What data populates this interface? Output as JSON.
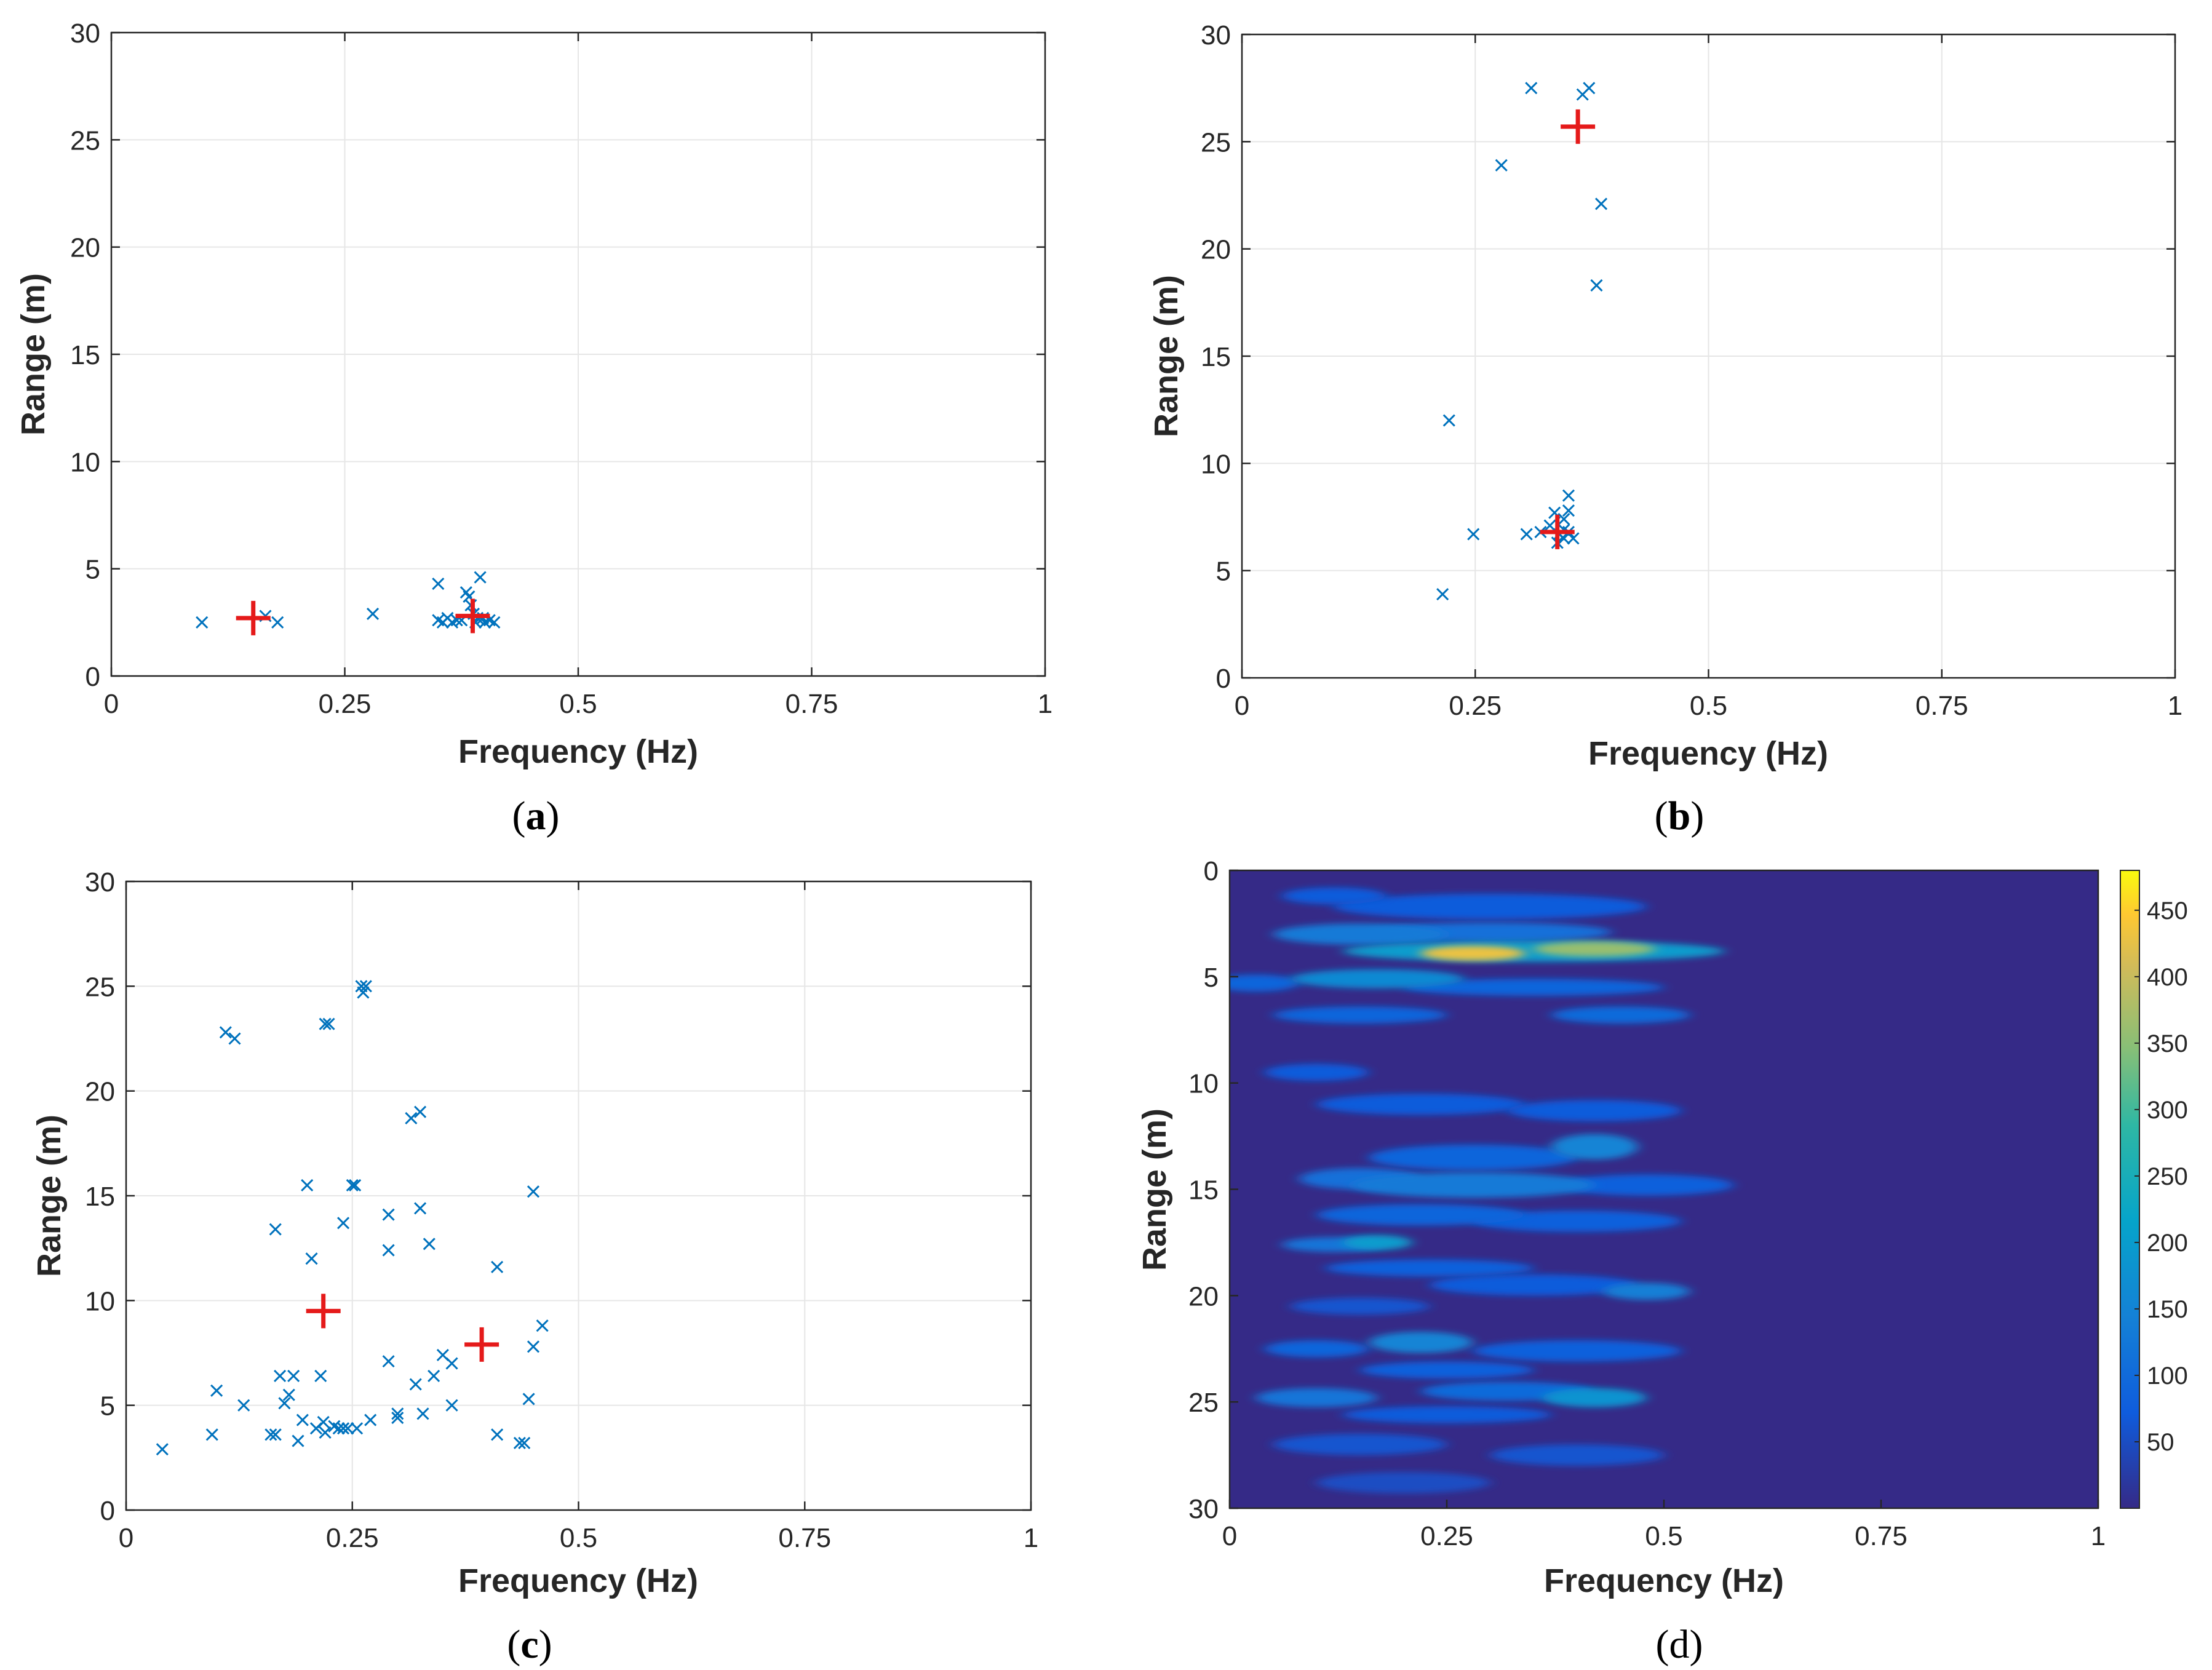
{
  "colors": {
    "marker_blue": "#0072BD",
    "peak_red": "#E51A1A",
    "heatmap_bg": "#352A87",
    "grid": "#E6E6E6",
    "axis": "#262626"
  },
  "chart_data": [
    {
      "panel": "a",
      "caption": "a",
      "type": "scatter",
      "xlabel": "Frequency (Hz)",
      "ylabel": "Range (m)",
      "xlim": [
        0,
        1
      ],
      "ylim": [
        0,
        30
      ],
      "xticks": [
        0,
        0.25,
        0.5,
        0.75,
        1
      ],
      "xtick_labels": [
        "0",
        "0.25",
        "0.5",
        "0.75",
        "1"
      ],
      "yticks": [
        0,
        5,
        10,
        15,
        20,
        25,
        30
      ],
      "ytick_labels": [
        "0",
        "5",
        "10",
        "15",
        "20",
        "25",
        "30"
      ],
      "grid": true,
      "series": [
        {
          "name": "detections",
          "marker": "x",
          "points": [
            [
              0.097,
              2.5
            ],
            [
              0.165,
              2.8
            ],
            [
              0.178,
              2.5
            ],
            [
              0.28,
              2.9
            ],
            [
              0.35,
              4.3
            ],
            [
              0.35,
              2.6
            ],
            [
              0.355,
              2.5
            ],
            [
              0.36,
              2.7
            ],
            [
              0.365,
              2.5
            ],
            [
              0.37,
              2.6
            ],
            [
              0.375,
              2.6
            ],
            [
              0.38,
              3.9
            ],
            [
              0.383,
              3.7
            ],
            [
              0.385,
              3.3
            ],
            [
              0.388,
              2.9
            ],
            [
              0.39,
              2.5
            ],
            [
              0.392,
              2.7
            ],
            [
              0.395,
              4.6
            ],
            [
              0.398,
              2.7
            ],
            [
              0.4,
              2.5
            ],
            [
              0.405,
              2.6
            ],
            [
              0.41,
              2.5
            ]
          ]
        },
        {
          "name": "peaks",
          "marker": "+",
          "points": [
            [
              0.152,
              2.7
            ],
            [
              0.387,
              2.8
            ]
          ]
        }
      ]
    },
    {
      "panel": "b",
      "caption": "b",
      "type": "scatter",
      "xlabel": "Frequency (Hz)",
      "ylabel": "Range (m)",
      "xlim": [
        0,
        1
      ],
      "ylim": [
        0,
        30
      ],
      "xticks": [
        0,
        0.25,
        0.5,
        0.75,
        1
      ],
      "xtick_labels": [
        "0",
        "0.25",
        "0.5",
        "0.75",
        "1"
      ],
      "yticks": [
        0,
        5,
        10,
        15,
        20,
        25,
        30
      ],
      "ytick_labels": [
        "0",
        "5",
        "10",
        "15",
        "20",
        "25",
        "30"
      ],
      "grid": true,
      "series": [
        {
          "name": "detections",
          "marker": "x",
          "points": [
            [
              0.31,
              27.5
            ],
            [
              0.365,
              27.2
            ],
            [
              0.372,
              27.5
            ],
            [
              0.278,
              23.9
            ],
            [
              0.385,
              22.1
            ],
            [
              0.38,
              18.3
            ],
            [
              0.222,
              12.0
            ],
            [
              0.215,
              3.9
            ],
            [
              0.248,
              6.7
            ],
            [
              0.305,
              6.7
            ],
            [
              0.32,
              6.8
            ],
            [
              0.33,
              7.1
            ],
            [
              0.335,
              7.7
            ],
            [
              0.34,
              6.7
            ],
            [
              0.345,
              6.5
            ],
            [
              0.345,
              7.4
            ],
            [
              0.35,
              8.5
            ],
            [
              0.35,
              6.8
            ],
            [
              0.355,
              6.5
            ],
            [
              0.35,
              7.8
            ],
            [
              0.338,
              6.3
            ],
            [
              0.345,
              6.9
            ]
          ]
        },
        {
          "name": "peaks",
          "marker": "+",
          "points": [
            [
              0.36,
              25.7
            ],
            [
              0.338,
              6.8
            ]
          ]
        }
      ]
    },
    {
      "panel": "c",
      "caption": "c",
      "type": "scatter",
      "xlabel": "Frequency (Hz)",
      "ylabel": "Range (m)",
      "xlim": [
        0,
        1
      ],
      "ylim": [
        0,
        30
      ],
      "xticks": [
        0,
        0.25,
        0.5,
        0.75,
        1
      ],
      "xtick_labels": [
        "0",
        "0.25",
        "0.5",
        "0.75",
        "1"
      ],
      "yticks": [
        0,
        5,
        10,
        15,
        20,
        25,
        30
      ],
      "ytick_labels": [
        "0",
        "5",
        "10",
        "15",
        "20",
        "25",
        "30"
      ],
      "grid": true,
      "series": [
        {
          "name": "detections",
          "marker": "x",
          "points": [
            [
              0.04,
              2.9
            ],
            [
              0.095,
              3.6
            ],
            [
              0.1,
              5.7
            ],
            [
              0.13,
              5.0
            ],
            [
              0.11,
              22.8
            ],
            [
              0.12,
              22.5
            ],
            [
              0.16,
              3.6
            ],
            [
              0.165,
              3.6
            ],
            [
              0.165,
              13.4
            ],
            [
              0.17,
              6.4
            ],
            [
              0.175,
              5.1
            ],
            [
              0.18,
              5.5
            ],
            [
              0.185,
              6.4
            ],
            [
              0.19,
              3.3
            ],
            [
              0.195,
              4.3
            ],
            [
              0.2,
              15.5
            ],
            [
              0.205,
              12.0
            ],
            [
              0.21,
              3.9
            ],
            [
              0.215,
              6.4
            ],
            [
              0.218,
              4.2
            ],
            [
              0.22,
              3.7
            ],
            [
              0.22,
              23.2
            ],
            [
              0.224,
              23.2
            ],
            [
              0.23,
              4.0
            ],
            [
              0.235,
              3.9
            ],
            [
              0.24,
              13.7
            ],
            [
              0.24,
              3.9
            ],
            [
              0.245,
              3.9
            ],
            [
              0.25,
              15.5
            ],
            [
              0.253,
              15.5
            ],
            [
              0.255,
              3.9
            ],
            [
              0.26,
              25.0
            ],
            [
              0.262,
              24.7
            ],
            [
              0.265,
              25.0
            ],
            [
              0.27,
              4.3
            ],
            [
              0.29,
              14.1
            ],
            [
              0.29,
              7.1
            ],
            [
              0.29,
              12.4
            ],
            [
              0.3,
              4.6
            ],
            [
              0.3,
              4.4
            ],
            [
              0.315,
              18.7
            ],
            [
              0.32,
              6.0
            ],
            [
              0.325,
              19.0
            ],
            [
              0.325,
              14.4
            ],
            [
              0.328,
              4.6
            ],
            [
              0.335,
              12.7
            ],
            [
              0.34,
              6.4
            ],
            [
              0.35,
              7.4
            ],
            [
              0.36,
              7.0
            ],
            [
              0.36,
              5.0
            ],
            [
              0.41,
              11.6
            ],
            [
              0.41,
              3.6
            ],
            [
              0.435,
              3.2
            ],
            [
              0.44,
              3.2
            ],
            [
              0.445,
              5.3
            ],
            [
              0.45,
              15.2
            ],
            [
              0.45,
              7.8
            ],
            [
              0.46,
              8.8
            ]
          ]
        },
        {
          "name": "peaks",
          "marker": "+",
          "points": [
            [
              0.218,
              9.5
            ],
            [
              0.393,
              7.9
            ]
          ]
        }
      ]
    },
    {
      "panel": "d",
      "caption": "d",
      "type": "heatmap",
      "xlabel": "Frequency (Hz)",
      "ylabel": "Range (m)",
      "xlim": [
        0,
        1
      ],
      "ylim": [
        0,
        30
      ],
      "y_reversed": true,
      "xticks": [
        0,
        0.25,
        0.5,
        0.75,
        1
      ],
      "xtick_labels": [
        "0",
        "0.25",
        "0.5",
        "0.75",
        "1"
      ],
      "yticks": [
        0,
        5,
        10,
        15,
        20,
        25,
        30
      ],
      "ytick_labels": [
        "0",
        "5",
        "10",
        "15",
        "20",
        "25",
        "30"
      ],
      "colorbar": {
        "min": 0,
        "max": 480,
        "ticks": [
          50,
          100,
          150,
          200,
          250,
          300,
          350,
          400,
          450
        ],
        "tick_labels": [
          "50",
          "100",
          "150",
          "200",
          "250",
          "300",
          "350",
          "400",
          "450"
        ],
        "colormap": "parula"
      },
      "blobs": [
        {
          "f": 0.28,
          "r": 3.9,
          "f_width": 0.06,
          "r_width": 0.35,
          "value": 430
        },
        {
          "f": 0.42,
          "r": 3.7,
          "f_width": 0.07,
          "r_width": 0.35,
          "value": 360
        },
        {
          "f": 0.35,
          "r": 3.8,
          "f_width": 0.22,
          "r_width": 0.5,
          "value": 200
        },
        {
          "f": 0.15,
          "r": 3.0,
          "f_width": 0.1,
          "r_width": 0.5,
          "value": 130
        },
        {
          "f": 0.3,
          "r": 2.9,
          "f_width": 0.14,
          "r_width": 0.45,
          "value": 110
        },
        {
          "f": 0.17,
          "r": 5.1,
          "f_width": 0.1,
          "r_width": 0.45,
          "value": 160
        },
        {
          "f": 0.35,
          "r": 5.5,
          "f_width": 0.15,
          "r_width": 0.4,
          "value": 90
        },
        {
          "f": 0.03,
          "r": 5.3,
          "f_width": 0.05,
          "r_width": 0.4,
          "value": 90
        },
        {
          "f": 0.15,
          "r": 6.8,
          "f_width": 0.1,
          "r_width": 0.4,
          "value": 90
        },
        {
          "f": 0.45,
          "r": 6.8,
          "f_width": 0.08,
          "r_width": 0.4,
          "value": 100
        },
        {
          "f": 0.3,
          "r": 1.7,
          "f_width": 0.18,
          "r_width": 0.6,
          "value": 70
        },
        {
          "f": 0.12,
          "r": 1.2,
          "f_width": 0.06,
          "r_width": 0.4,
          "value": 70
        },
        {
          "f": 0.1,
          "r": 9.5,
          "f_width": 0.06,
          "r_width": 0.4,
          "value": 70
        },
        {
          "f": 0.22,
          "r": 11.0,
          "f_width": 0.12,
          "r_width": 0.5,
          "value": 70
        },
        {
          "f": 0.42,
          "r": 11.3,
          "f_width": 0.1,
          "r_width": 0.5,
          "value": 70
        },
        {
          "f": 0.42,
          "r": 13.0,
          "f_width": 0.05,
          "r_width": 0.6,
          "value": 150
        },
        {
          "f": 0.28,
          "r": 13.5,
          "f_width": 0.12,
          "r_width": 0.6,
          "value": 90
        },
        {
          "f": 0.15,
          "r": 14.5,
          "f_width": 0.07,
          "r_width": 0.5,
          "value": 110
        },
        {
          "f": 0.28,
          "r": 14.8,
          "f_width": 0.14,
          "r_width": 0.6,
          "value": 130
        },
        {
          "f": 0.48,
          "r": 14.8,
          "f_width": 0.1,
          "r_width": 0.5,
          "value": 80
        },
        {
          "f": 0.22,
          "r": 16.2,
          "f_width": 0.12,
          "r_width": 0.5,
          "value": 90
        },
        {
          "f": 0.4,
          "r": 16.5,
          "f_width": 0.12,
          "r_width": 0.5,
          "value": 80
        },
        {
          "f": 0.17,
          "r": 17.5,
          "f_width": 0.04,
          "r_width": 0.35,
          "value": 200
        },
        {
          "f": 0.12,
          "r": 17.6,
          "f_width": 0.06,
          "r_width": 0.35,
          "value": 120
        },
        {
          "f": 0.23,
          "r": 18.7,
          "f_width": 0.12,
          "r_width": 0.4,
          "value": 80
        },
        {
          "f": 0.48,
          "r": 19.8,
          "f_width": 0.05,
          "r_width": 0.4,
          "value": 140
        },
        {
          "f": 0.35,
          "r": 19.5,
          "f_width": 0.12,
          "r_width": 0.5,
          "value": 70
        },
        {
          "f": 0.15,
          "r": 20.5,
          "f_width": 0.08,
          "r_width": 0.4,
          "value": 60
        },
        {
          "f": 0.1,
          "r": 22.5,
          "f_width": 0.06,
          "r_width": 0.4,
          "value": 90
        },
        {
          "f": 0.22,
          "r": 22.2,
          "f_width": 0.06,
          "r_width": 0.5,
          "value": 150
        },
        {
          "f": 0.4,
          "r": 22.6,
          "f_width": 0.12,
          "r_width": 0.5,
          "value": 80
        },
        {
          "f": 0.25,
          "r": 23.5,
          "f_width": 0.1,
          "r_width": 0.4,
          "value": 80
        },
        {
          "f": 0.1,
          "r": 24.8,
          "f_width": 0.07,
          "r_width": 0.45,
          "value": 120
        },
        {
          "f": 0.42,
          "r": 24.8,
          "f_width": 0.06,
          "r_width": 0.45,
          "value": 180
        },
        {
          "f": 0.32,
          "r": 24.5,
          "f_width": 0.1,
          "r_width": 0.45,
          "value": 100
        },
        {
          "f": 0.25,
          "r": 25.6,
          "f_width": 0.12,
          "r_width": 0.4,
          "value": 70
        },
        {
          "f": 0.15,
          "r": 27.0,
          "f_width": 0.1,
          "r_width": 0.5,
          "value": 60
        },
        {
          "f": 0.4,
          "r": 27.5,
          "f_width": 0.1,
          "r_width": 0.5,
          "value": 60
        },
        {
          "f": 0.2,
          "r": 28.8,
          "f_width": 0.1,
          "r_width": 0.5,
          "value": 50
        }
      ]
    }
  ]
}
